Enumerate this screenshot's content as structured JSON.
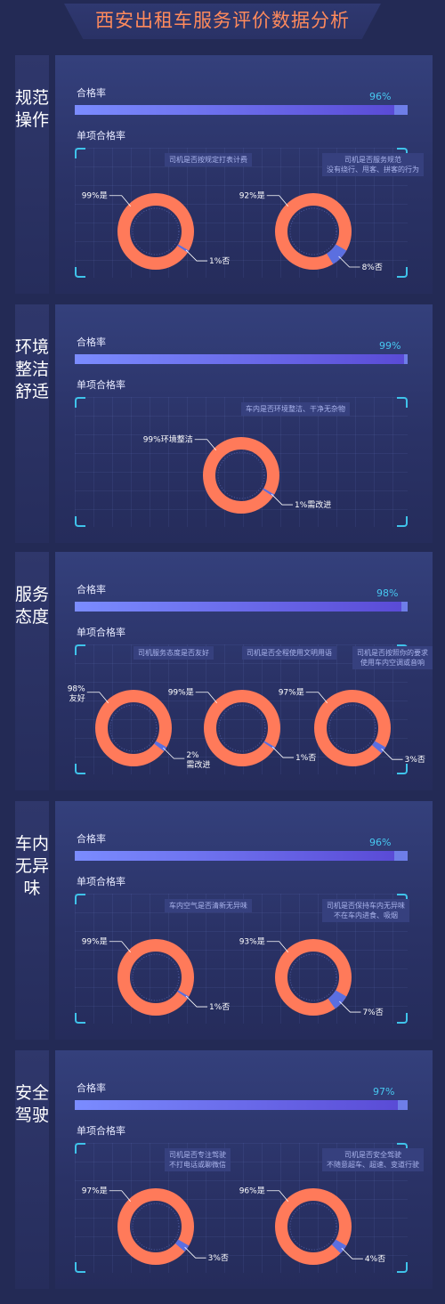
{
  "title": "西安出租车服务评价数据分析",
  "labels": {
    "pass_rate": "合格率",
    "single_pass_rate": "单项合格率"
  },
  "colors": {
    "donut_main": "#ff7a5a",
    "donut_minor": "#5b6fe0",
    "bar": "#6a67e8",
    "accent": "#3fc3ea",
    "title": "#ff8a5c"
  },
  "sections": [
    {
      "category": "规范操作",
      "pass_rate": 96,
      "pass_rate_text": "96%",
      "charts": [
        {
          "question": "司机是否按规定打表计费",
          "main_label": "99%是",
          "minor_label": "1%否",
          "main": 99,
          "minor": 1
        },
        {
          "question": "司机是否服务规范\n没有绕行、甩客、拼客的行为",
          "main_label": "92%是",
          "minor_label": "8%否",
          "main": 92,
          "minor": 8
        }
      ]
    },
    {
      "category": "环境整洁舒适",
      "pass_rate": 99,
      "pass_rate_text": "99%",
      "charts": [
        {
          "question": "车内是否环境整洁、干净无杂物",
          "main_label": "99%环境整洁",
          "minor_label": "1%需改进",
          "main": 99,
          "minor": 1
        }
      ]
    },
    {
      "category": "服务态度",
      "pass_rate": 98,
      "pass_rate_text": "98%",
      "charts": [
        {
          "question": "司机服务态度是否友好",
          "main_label": "98%\n友好",
          "minor_label": "2%\n需改进",
          "main": 98,
          "minor": 2
        },
        {
          "question": "司机是否全程使用文明用语",
          "main_label": "99%是",
          "minor_label": "1%否",
          "main": 99,
          "minor": 1
        },
        {
          "question": "司机是否按照你的要求\n使用车内空调或音响",
          "main_label": "97%是",
          "minor_label": "3%否",
          "main": 97,
          "minor": 3
        }
      ]
    },
    {
      "category": "车内无异味",
      "pass_rate": 96,
      "pass_rate_text": "96%",
      "charts": [
        {
          "question": "车内空气是否清新无异味",
          "main_label": "99%是",
          "minor_label": "1%否",
          "main": 99,
          "minor": 1
        },
        {
          "question": "司机是否保持车内无异味\n不在车内进食、吸烟",
          "main_label": "93%是",
          "minor_label": "7%否",
          "main": 93,
          "minor": 7
        }
      ]
    },
    {
      "category": "安全驾驶",
      "pass_rate": 97,
      "pass_rate_text": "97%",
      "charts": [
        {
          "question": "司机是否专注驾驶\n不打电话或聊微信",
          "main_label": "97%是",
          "minor_label": "3%否",
          "main": 97,
          "minor": 3
        },
        {
          "question": "司机是否安全驾驶\n不随意超车、超速、变道行驶",
          "main_label": "96%是",
          "minor_label": "4%否",
          "main": 96,
          "minor": 4
        }
      ]
    }
  ],
  "chart_data": [
    {
      "type": "bar",
      "title": "",
      "categories": [
        "规范操作",
        "环境整洁舒适",
        "服务态度",
        "车内无异味",
        "安全驾驶"
      ],
      "values": [
        96,
        99,
        98,
        96,
        97
      ],
      "ylim": [
        0,
        100
      ]
    },
    {
      "type": "pie",
      "categories": [
        "是",
        "否"
      ],
      "values": [
        99,
        1
      ]
    },
    {
      "type": "pie",
      "categories": [
        "是",
        "否"
      ],
      "values": [
        92,
        8
      ]
    },
    {
      "type": "pie",
      "categories": [
        "环境整洁",
        "需改进"
      ],
      "values": [
        99,
        1
      ]
    },
    {
      "type": "pie",
      "categories": [
        "友好",
        "需改进"
      ],
      "values": [
        98,
        2
      ]
    },
    {
      "type": "pie",
      "categories": [
        "是",
        "否"
      ],
      "values": [
        99,
        1
      ]
    },
    {
      "type": "pie",
      "categories": [
        "是",
        "否"
      ],
      "values": [
        97,
        3
      ]
    },
    {
      "type": "pie",
      "categories": [
        "是",
        "否"
      ],
      "values": [
        99,
        1
      ]
    },
    {
      "type": "pie",
      "categories": [
        "是",
        "否"
      ],
      "values": [
        93,
        7
      ]
    },
    {
      "type": "pie",
      "categories": [
        "是",
        "否"
      ],
      "values": [
        97,
        3
      ]
    },
    {
      "type": "pie",
      "categories": [
        "是",
        "否"
      ],
      "values": [
        96,
        4
      ]
    }
  ]
}
